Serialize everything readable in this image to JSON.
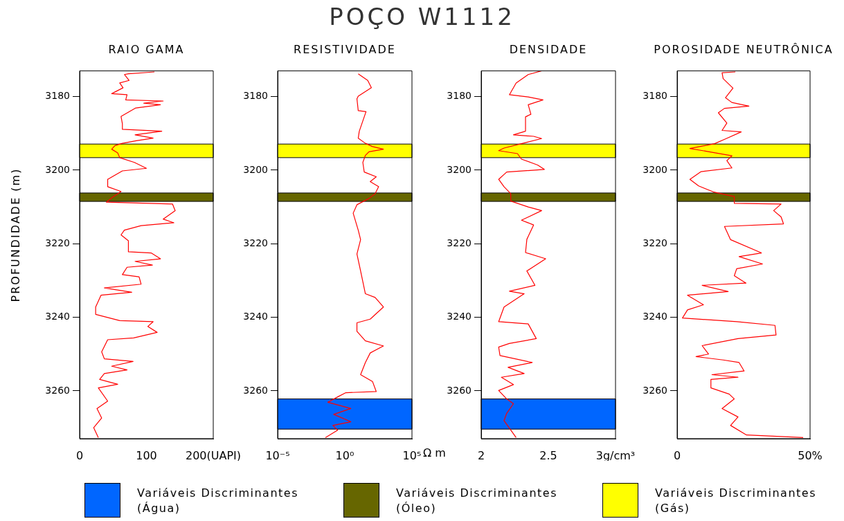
{
  "chart_data": [
    {
      "type": "other",
      "title": "POÇO W1112"
    },
    {
      "type": "line",
      "subtitle": "RAIO GAMA",
      "ylabel": "PROFUNDIDADE (m)",
      "xlim": [
        0,
        200
      ],
      "xticks": [
        0,
        100,
        {
          "value": 200,
          "label": "200(UAPI)"
        }
      ],
      "ylim": [
        3273,
        3173
      ],
      "yticks": [
        3180,
        3200,
        3220,
        3240,
        3260
      ],
      "marker": "none",
      "line_style": "solid",
      "series": [
        {
          "color": "#ff0000",
          "x": [
            112,
            73,
            67,
            74,
            60,
            65,
            48,
            71,
            69,
            125,
            96,
            121,
            84,
            62,
            64,
            64,
            123,
            83,
            110,
            85,
            64,
            53,
            48,
            57,
            60,
            82,
            100,
            64,
            42,
            42,
            62,
            49,
            40,
            139,
            143,
            125,
            141,
            92,
            67,
            62,
            73,
            73,
            107,
            121,
            83,
            109,
            71,
            64,
            89,
            92,
            37,
            78,
            32,
            24,
            24,
            60,
            110,
            102,
            116,
            81,
            42,
            33,
            37,
            80,
            48,
            71,
            37,
            30,
            57,
            28,
            42,
            26,
            33,
            21,
            28
          ],
          "values": [
            3173.3,
            3173.8,
            3174,
            3175.6,
            3176.3,
            3177.6,
            3179.2,
            3179.5,
            3180.9,
            3181.2,
            3181.8,
            3182.2,
            3183.1,
            3185.4,
            3187.4,
            3188.9,
            3189.4,
            3190.4,
            3191.3,
            3192,
            3192.7,
            3193.3,
            3194.3,
            3195.3,
            3196.6,
            3197.9,
            3199.5,
            3200.2,
            3202.5,
            3204.5,
            3205.8,
            3207.4,
            3208.7,
            3209.2,
            3211,
            3213.3,
            3214.3,
            3215.1,
            3216.3,
            3217.6,
            3219.2,
            3222.2,
            3222.5,
            3224.1,
            3224.8,
            3225.8,
            3226.4,
            3228.4,
            3229,
            3231,
            3232,
            3233.2,
            3234,
            3237.2,
            3239.2,
            3240.9,
            3241.2,
            3242.5,
            3244.1,
            3245.6,
            3246.1,
            3249.4,
            3251.3,
            3252,
            3253.3,
            3254.3,
            3255.3,
            3256.9,
            3258.2,
            3259.2,
            3262.8,
            3264.8,
            3267.4,
            3270,
            3272.7
          ]
        }
      ],
      "bands": [
        {
          "axis": "y",
          "from": 3192.9,
          "to": 3196.6,
          "color": "#ffff00"
        },
        {
          "axis": "y",
          "from": 3206.2,
          "to": 3208.5,
          "color": "#666600"
        }
      ]
    },
    {
      "type": "line",
      "subtitle": "RESISTIVIDADE",
      "log": "x",
      "xlim": [
        1e-05,
        100000
      ],
      "xticks": [
        {
          "value": 1e-05,
          "label": "10⁻⁵"
        },
        {
          "value": 1,
          "label": "10⁰"
        },
        {
          "value": 100000,
          "label": "10⁵"
        }
      ],
      "xlabel": "Ω m",
      "ylim": [
        3273,
        3173
      ],
      "yticks": [
        3180,
        3200,
        3220,
        3240,
        3260
      ],
      "marker": "none",
      "line_style": "solid",
      "series": [
        {
          "color": "#ff0000",
          "x": [
            10,
            51,
            95,
            10,
            8,
            10,
            38,
            12,
            10,
            34,
            117,
            750,
            63,
            34,
            22,
            28,
            220,
            78,
            330,
            180,
            63,
            8,
            4.2,
            10,
            15,
            8,
            15,
            34,
            180,
            750,
            78,
            8,
            8,
            34,
            750,
            78,
            34,
            15,
            117,
            220,
            1.2,
            0.35,
            0.055,
            2.8,
            0.15,
            2.8,
            0.13,
            0.29,
            0.036
          ],
          "values": [
            3173.8,
            3175.6,
            3177.6,
            3179.9,
            3180.6,
            3183.8,
            3184.1,
            3189.4,
            3191.3,
            3192.7,
            3193.6,
            3194.3,
            3195,
            3196,
            3197.9,
            3200.5,
            3201.8,
            3203.1,
            3204.5,
            3206.4,
            3207.7,
            3209.4,
            3211.7,
            3216.3,
            3218.9,
            3222.8,
            3227.4,
            3233.6,
            3234.6,
            3237.2,
            3240.5,
            3241.5,
            3243.8,
            3246.4,
            3247.8,
            3249.7,
            3252.3,
            3255.6,
            3257.5,
            3260.2,
            3260.5,
            3261.5,
            3263.1,
            3264.8,
            3266.4,
            3268.4,
            3269.4,
            3270.7,
            3272.7
          ]
        }
      ],
      "bands": [
        {
          "axis": "y",
          "from": 3262.2,
          "to": 3270.4,
          "color": "#0066ff"
        },
        {
          "axis": "y",
          "from": 3206.2,
          "to": 3208.5,
          "color": "#666600"
        },
        {
          "axis": "y",
          "from": 3192.9,
          "to": 3196.6,
          "color": "#ffff00"
        }
      ]
    },
    {
      "type": "line",
      "subtitle": "DENSIDADE",
      "xlim": [
        2,
        3
      ],
      "xticks": [
        2,
        2.5,
        {
          "value": 3,
          "label": "3g/cm³"
        }
      ],
      "ylim": [
        3273,
        3173
      ],
      "yticks": [
        3180,
        3200,
        3220,
        3240,
        3260
      ],
      "marker": "none",
      "line_style": "solid",
      "series": [
        {
          "color": "#ff0000",
          "x": [
            2.45,
            2.35,
            2.26,
            2.21,
            2.35,
            2.46,
            2.35,
            2.37,
            2.33,
            2.33,
            2.24,
            2.39,
            2.45,
            2.31,
            2.17,
            2.13,
            2.27,
            2.3,
            2.42,
            2.47,
            2.19,
            2.13,
            2.17,
            2.22,
            2.22,
            2.35,
            2.45,
            2.3,
            2.39,
            2.34,
            2.33,
            2.48,
            2.34,
            2.4,
            2.21,
            2.32,
            2.17,
            2.13,
            2.35,
            2.41,
            2.21,
            2.13,
            2.14,
            2.38,
            2.2,
            2.32,
            2.15,
            2.24,
            2.13,
            2.19,
            2.24,
            2.19,
            2.17,
            2.26
          ],
          "values": [
            3173,
            3174,
            3176.3,
            3179.5,
            3180.1,
            3180.9,
            3182.2,
            3184.8,
            3185.5,
            3189.4,
            3190.4,
            3190.8,
            3191.4,
            3192.7,
            3194,
            3194.7,
            3195.5,
            3197,
            3198.6,
            3199.8,
            3200.5,
            3202.5,
            3204.5,
            3206.4,
            3208.4,
            3210,
            3211,
            3213.6,
            3214.9,
            3218.8,
            3222.4,
            3224.1,
            3227.4,
            3231.3,
            3232.9,
            3233.6,
            3237.2,
            3241.2,
            3241.8,
            3245.8,
            3247.1,
            3248.1,
            3250.4,
            3252.3,
            3253.6,
            3255.3,
            3256.3,
            3258.3,
            3259.9,
            3262.2,
            3263.5,
            3266.1,
            3268.1,
            3272.7
          ]
        }
      ],
      "bands": [
        {
          "axis": "y",
          "from": 3192.9,
          "to": 3196.6,
          "color": "#ffff00"
        },
        {
          "axis": "y",
          "from": 3206.2,
          "to": 3208.5,
          "color": "#666600"
        },
        {
          "axis": "y",
          "from": 3262.2,
          "to": 3270.4,
          "color": "#0066ff"
        }
      ]
    },
    {
      "type": "line",
      "subtitle": "POROSIDADE NEUTRÔNICA",
      "xlim": [
        0,
        50
      ],
      "xticks": [
        0,
        {
          "value": 50,
          "label": "50%"
        }
      ],
      "ylim": [
        3273,
        3173
      ],
      "yticks": [
        3180,
        3200,
        3220,
        3240,
        3260
      ],
      "marker": "none",
      "line_style": "solid",
      "series": [
        {
          "color": "#ff0000",
          "x": [
            21.9,
            16.9,
            17.3,
            21,
            18.2,
            20.6,
            27,
            17.8,
            15.5,
            18.7,
            16.9,
            24.1,
            18.2,
            14.1,
            4.8,
            11.3,
            20.6,
            18.7,
            20.6,
            9,
            4.8,
            8.1,
            13.6,
            21.5,
            21.5,
            39.1,
            36.3,
            39.1,
            40,
            17.8,
            20.1,
            31.7,
            23.3,
            32.1,
            22.4,
            21.5,
            25.9,
            9.4,
            19.2,
            3.9,
            9.9,
            3.9,
            2,
            22.4,
            36.8,
            37.2,
            22.9,
            9.4,
            11.8,
            7.1,
            17.3,
            23.3,
            25.2,
            13.1,
            22.9,
            12.7,
            12.7,
            19.6,
            21.5,
            16.9,
            22.9,
            20.1,
            26.1,
            47.4
          ],
          "values": [
            3173.3,
            3173.5,
            3175.1,
            3177.7,
            3180.3,
            3181.6,
            3182.6,
            3183.2,
            3184.4,
            3187.2,
            3189.2,
            3189.6,
            3191.5,
            3192.8,
            3194.1,
            3194.9,
            3196.1,
            3197.4,
            3199.4,
            3200.4,
            3202.5,
            3204.3,
            3205.9,
            3207.2,
            3209,
            3209.2,
            3211,
            3212.7,
            3214.6,
            3215.3,
            3218.9,
            3222.5,
            3223.5,
            3225.5,
            3226.8,
            3228.7,
            3230.7,
            3231.3,
            3233,
            3234,
            3236.6,
            3238,
            3240.2,
            3241.2,
            3242.2,
            3244.8,
            3245.8,
            3247.7,
            3250,
            3250.7,
            3251.6,
            3252.3,
            3254.6,
            3255.6,
            3256.3,
            3256.9,
            3259.2,
            3260.9,
            3262.2,
            3264.8,
            3267.1,
            3269.4,
            3272,
            3272.7
          ]
        }
      ],
      "bands": [
        {
          "axis": "y",
          "from": 3192.9,
          "to": 3196.6,
          "color": "#ffff00"
        },
        {
          "axis": "y",
          "from": 3206.2,
          "to": 3208.5,
          "color": "#666600"
        }
      ]
    },
    {
      "type": "other",
      "annotations": [
        "Variáveis Discriminantes (Água)",
        "Variáveis Discriminantes (Óleo)",
        "Variáveis Discriminantes (Gás)"
      ]
    }
  ]
}
